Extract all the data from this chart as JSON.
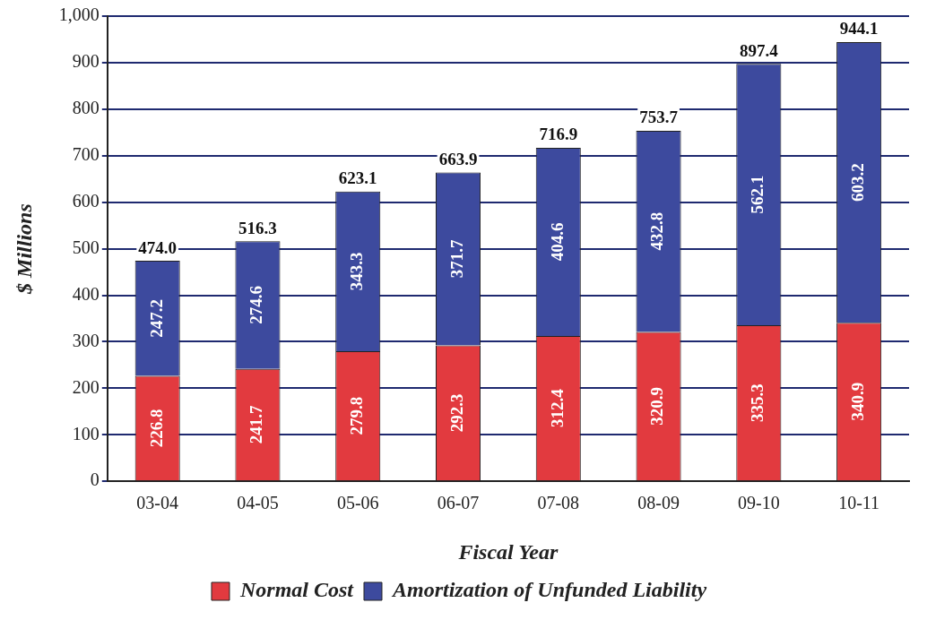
{
  "chart_data": {
    "type": "bar",
    "stacked": true,
    "xlabel": "Fiscal Year",
    "ylabel": "$ Millions",
    "categories": [
      "03-04",
      "04-05",
      "05-06",
      "06-07",
      "07-08",
      "08-09",
      "09-10",
      "10-11"
    ],
    "series": [
      {
        "name": "Normal Cost",
        "color": "#e23a3f",
        "values": [
          226.8,
          241.7,
          279.8,
          292.3,
          312.4,
          320.9,
          335.3,
          340.9
        ]
      },
      {
        "name": "Amortization of Unfunded Liability",
        "color": "#3d4a9e",
        "values": [
          247.2,
          274.6,
          343.3,
          371.7,
          404.6,
          432.8,
          562.1,
          603.2
        ]
      }
    ],
    "totals": [
      "474.0",
      "516.3",
      "623.1",
      "663.9",
      "716.9",
      "753.7",
      "897.4",
      "944.1"
    ],
    "data_labels": true,
    "ylim": [
      0,
      1000
    ],
    "yticks": [
      0,
      100,
      200,
      300,
      400,
      500,
      600,
      700,
      800,
      900,
      {
        "value": 1000,
        "label": "1,000"
      }
    ],
    "grid": "y",
    "legend": "bottom"
  }
}
